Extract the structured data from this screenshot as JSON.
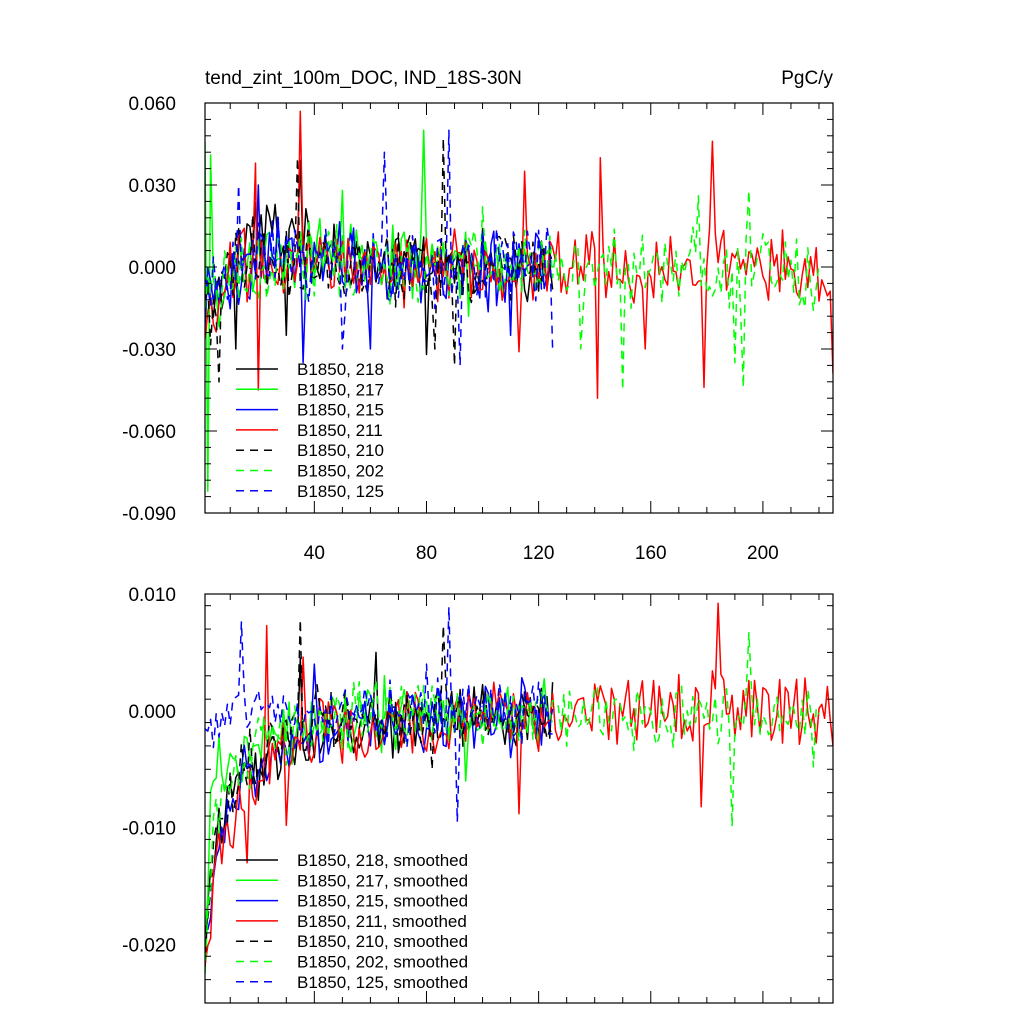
{
  "chart_data": [
    {
      "type": "line",
      "title": "tend_zint_100m_DOC, IND_18S-30N",
      "units": "PgC/y",
      "xlabel": "",
      "ylabel": "",
      "xlim": [
        1,
        225
      ],
      "ylim": [
        -0.09,
        0.06
      ],
      "x_ticks": [
        40,
        80,
        120,
        160,
        200
      ],
      "y_ticks": [
        0.06,
        0.03,
        0.0,
        -0.03,
        -0.06,
        -0.09
      ],
      "y_tick_labels": [
        "0.060",
        "0.030",
        "0.000",
        "-0.030",
        "-0.060",
        "-0.090"
      ],
      "x_tick_labels": [
        "40",
        "80",
        "120",
        "160",
        "200"
      ],
      "legend_position": "lower-left",
      "series": [
        {
          "name": "B1850, 218",
          "color": "#000000",
          "dash": "solid",
          "length": 125,
          "anchors": [
            [
              1,
              -0.012
            ],
            [
              20,
              0.015
            ],
            [
              60,
              -0.002
            ],
            [
              120,
              0.0
            ],
            [
              125,
              0.0
            ]
          ],
          "amp": 0.01,
          "spikes": [
            [
              35,
              0.039
            ],
            [
              30,
              -0.025
            ],
            [
              80,
              -0.032
            ],
            [
              100,
              0.014
            ],
            [
              12,
              -0.03
            ]
          ]
        },
        {
          "name": "B1850, 217",
          "color": "#00ff00",
          "dash": "solid",
          "length": 125,
          "anchors": [
            [
              1,
              0.04
            ],
            [
              5,
              -0.01
            ],
            [
              30,
              0.005
            ],
            [
              80,
              0.002
            ],
            [
              125,
              0.0
            ]
          ],
          "amp": 0.01,
          "spikes": [
            [
              3,
              0.041
            ],
            [
              2,
              -0.082
            ],
            [
              79,
              0.05
            ],
            [
              50,
              0.028
            ],
            [
              95,
              -0.018
            ]
          ]
        },
        {
          "name": "B1850, 215",
          "color": "#0000ff",
          "dash": "solid",
          "length": 125,
          "anchors": [
            [
              1,
              -0.01
            ],
            [
              25,
              0.005
            ],
            [
              60,
              0.0
            ],
            [
              125,
              -0.002
            ]
          ],
          "amp": 0.011,
          "spikes": [
            [
              36,
              -0.035
            ],
            [
              20,
              0.03
            ],
            [
              60,
              -0.03
            ],
            [
              110,
              -0.025
            ]
          ]
        },
        {
          "name": "B1850, 211",
          "color": "#ff0000",
          "dash": "solid",
          "length": 225,
          "anchors": [
            [
              1,
              -0.03
            ],
            [
              10,
              0.0
            ],
            [
              100,
              0.0
            ],
            [
              225,
              0.0
            ]
          ],
          "amp": 0.011,
          "spikes": [
            [
              35,
              0.057
            ],
            [
              19,
              0.038
            ],
            [
              20,
              -0.045
            ],
            [
              142,
              0.04
            ],
            [
              141,
              -0.048
            ],
            [
              182,
              0.046
            ],
            [
              179,
              -0.044
            ],
            [
              225,
              -0.039
            ],
            [
              113,
              -0.031
            ],
            [
              115,
              0.035
            ],
            [
              158,
              -0.03
            ]
          ]
        },
        {
          "name": "B1850, 210",
          "color": "#000000",
          "dash": "8,6",
          "length": 125,
          "anchors": [
            [
              1,
              -0.02
            ],
            [
              15,
              0.005
            ],
            [
              60,
              0.0
            ],
            [
              125,
              0.0
            ]
          ],
          "amp": 0.011,
          "spikes": [
            [
              34,
              0.04
            ],
            [
              6,
              -0.042
            ],
            [
              86,
              0.047
            ],
            [
              90,
              -0.036
            ],
            [
              83,
              -0.03
            ]
          ]
        },
        {
          "name": "B1850, 202",
          "color": "#00ff00",
          "dash": "8,6",
          "length": 220,
          "anchors": [
            [
              1,
              -0.005
            ],
            [
              30,
              0.002
            ],
            [
              120,
              0.0
            ],
            [
              220,
              0.0
            ]
          ],
          "amp": 0.011,
          "spikes": [
            [
              150,
              -0.045
            ],
            [
              193,
              -0.044
            ],
            [
              177,
              0.026
            ],
            [
              195,
              0.028
            ],
            [
              135,
              -0.03
            ],
            [
              190,
              -0.035
            ],
            [
              100,
              0.022
            ]
          ]
        },
        {
          "name": "B1850, 125",
          "color": "#0000ff",
          "dash": "8,6",
          "length": 125,
          "anchors": [
            [
              1,
              -0.01
            ],
            [
              20,
              0.008
            ],
            [
              60,
              0.0
            ],
            [
              125,
              0.0
            ]
          ],
          "amp": 0.012,
          "spikes": [
            [
              88,
              0.05
            ],
            [
              65,
              0.042
            ],
            [
              13,
              0.03
            ],
            [
              92,
              -0.036
            ],
            [
              125,
              -0.03
            ],
            [
              50,
              -0.03
            ]
          ]
        }
      ]
    },
    {
      "type": "line",
      "title": "",
      "xlim": [
        1,
        225
      ],
      "ylim": [
        -0.025,
        0.01
      ],
      "x_ticks": [
        40,
        80,
        120,
        160,
        200
      ],
      "y_ticks": [
        0.01,
        0.0,
        -0.01,
        -0.02
      ],
      "y_tick_labels": [
        "0.010",
        "0.000",
        "-0.010",
        "-0.020"
      ],
      "legend_position": "lower-left",
      "series": [
        {
          "name": "B1850, 218, smoothed",
          "color": "#000000",
          "dash": "solid",
          "length": 125,
          "anchors": [
            [
              1,
              -0.02
            ],
            [
              5,
              -0.01
            ],
            [
              15,
              -0.005
            ],
            [
              40,
              -0.002
            ],
            [
              125,
              0.0
            ]
          ],
          "amp": 0.0022,
          "spikes": [
            [
              35,
              0.0045
            ],
            [
              62,
              0.005
            ],
            [
              40,
              -0.004
            ]
          ]
        },
        {
          "name": "B1850, 217, smoothed",
          "color": "#00ff00",
          "dash": "solid",
          "length": 125,
          "anchors": [
            [
              1,
              -0.02
            ],
            [
              4,
              -0.005
            ],
            [
              15,
              -0.004
            ],
            [
              40,
              -0.001
            ],
            [
              125,
              0.0
            ]
          ],
          "amp": 0.0022,
          "spikes": [
            [
              94,
              -0.006
            ],
            [
              120,
              -0.003
            ],
            [
              65,
              0.003
            ]
          ]
        },
        {
          "name": "B1850, 215, smoothed",
          "color": "#0000ff",
          "dash": "solid",
          "length": 125,
          "anchors": [
            [
              1,
              -0.02
            ],
            [
              5,
              -0.012
            ],
            [
              15,
              -0.006
            ],
            [
              40,
              -0.002
            ],
            [
              125,
              0.0
            ]
          ],
          "amp": 0.0022,
          "spikes": [
            [
              40,
              0.004
            ],
            [
              60,
              -0.003
            ],
            [
              110,
              -0.004
            ]
          ]
        },
        {
          "name": "B1850, 211, smoothed",
          "color": "#ff0000",
          "dash": "solid",
          "length": 225,
          "anchors": [
            [
              1,
              -0.022
            ],
            [
              5,
              -0.012
            ],
            [
              15,
              -0.006
            ],
            [
              40,
              -0.002
            ],
            [
              120,
              0.0
            ],
            [
              225,
              0.0
            ]
          ],
          "amp": 0.0025,
          "spikes": [
            [
              16,
              -0.013
            ],
            [
              23,
              0.0073
            ],
            [
              184,
              0.0092
            ],
            [
              178,
              -0.0082
            ],
            [
              113,
              -0.0088
            ],
            [
              30,
              -0.0098
            ],
            [
              36,
              0.0046
            ],
            [
              225,
              -0.003
            ]
          ]
        },
        {
          "name": "B1850, 210, smoothed",
          "color": "#000000",
          "dash": "8,6",
          "length": 125,
          "anchors": [
            [
              1,
              -0.02
            ],
            [
              5,
              -0.01
            ],
            [
              15,
              -0.004
            ],
            [
              40,
              -0.001
            ],
            [
              125,
              0.0
            ]
          ],
          "amp": 0.0022,
          "spikes": [
            [
              35,
              0.0078
            ],
            [
              86,
              0.0073
            ],
            [
              82,
              -0.005
            ]
          ]
        },
        {
          "name": "B1850, 202, smoothed",
          "color": "#00ff00",
          "dash": "8,6",
          "length": 220,
          "anchors": [
            [
              1,
              -0.02
            ],
            [
              5,
              -0.008
            ],
            [
              20,
              -0.003
            ],
            [
              60,
              0.0
            ],
            [
              220,
              -0.001
            ]
          ],
          "amp": 0.0022,
          "spikes": [
            [
              195,
              0.0067
            ],
            [
              189,
              -0.0099
            ],
            [
              218,
              -0.0048
            ],
            [
              140,
              0.002
            ]
          ]
        },
        {
          "name": "B1850, 125, smoothed",
          "color": "#0000ff",
          "dash": "8,6",
          "length": 125,
          "anchors": [
            [
              1,
              -0.002
            ],
            [
              10,
              0.0
            ],
            [
              60,
              0.0
            ],
            [
              125,
              0.0
            ]
          ],
          "amp": 0.0022,
          "spikes": [
            [
              14,
              0.0076
            ],
            [
              88,
              0.0089
            ],
            [
              91,
              -0.0095
            ],
            [
              80,
              0.004
            ]
          ]
        }
      ]
    }
  ]
}
